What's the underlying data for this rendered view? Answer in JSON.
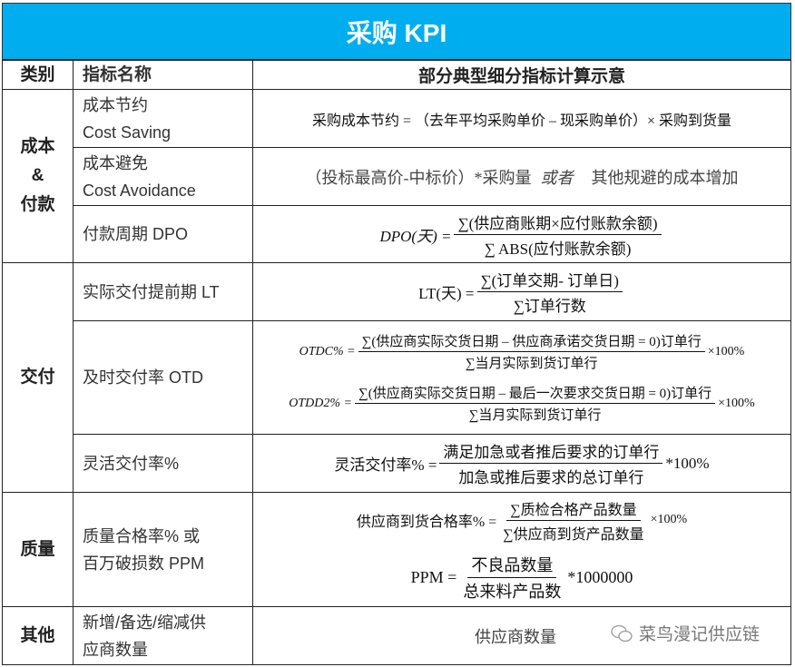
{
  "title": "采购 KPI",
  "headers": {
    "category": "类别",
    "name": "指标名称",
    "calc": "部分典型细分指标计算示意"
  },
  "categories": {
    "cost": "成本\n&\n付款",
    "delivery": "交付",
    "quality": "质量",
    "other": "其他"
  },
  "rows": [
    {
      "name_cn": "成本节约",
      "name_en": "Cost Saving",
      "formula": "采购成本节约 = （去年平均采购单价 – 现采购单价）× 采购到货量"
    },
    {
      "name_cn": "成本避免",
      "name_en": "Cost Avoidance",
      "formula_a": "（投标最高价-中标价）*采购量",
      "formula_or": "或者",
      "formula_b": "其他规避的成本增加"
    },
    {
      "name": "付款周期  DPO",
      "lhs": "DPO(天) =",
      "num": "∑(供应商账期×应付账款余额)",
      "den": "∑ ABS(应付账款余额)"
    },
    {
      "name": "实际交付提前期  LT",
      "lhs": "LT(天) =",
      "num": "∑(订单交期- 订单日)",
      "den": "∑订单行数"
    },
    {
      "name": "及时交付率 OTD",
      "lhs1": "OTDC% =",
      "num1": "∑(供应商实际交货日期 – 供应商承诺交货日期 = 0)订单行",
      "den1": "∑当月实际到货订单行",
      "suf1": "×100%",
      "lhs2": "OTDD2% =",
      "num2": "∑(供应商实际交货日期 – 最后一次要求交货日期 = 0)订单行",
      "den2": "∑当月实际到货订单行",
      "suf2": "×100%"
    },
    {
      "name": "灵活交付率%",
      "lhs": "灵活交付率% =",
      "num": "满足加急或者推后要求的订单行",
      "den": "加急或推后要求的总订单行",
      "suf": "*100%"
    },
    {
      "name": "质量合格率% 或\n百万破损数 PPM",
      "lhs1": "供应商到货合格率% =",
      "num1": "∑质检合格产品数量",
      "den1": "∑供应商到货产品数量",
      "suf1": "×100%",
      "lhs2": "PPM =",
      "num2": "不良品数量",
      "den2": "总来料产品数",
      "suf2": "*1000000"
    },
    {
      "name": "新增/备选/缩减供\n应商数量",
      "formula": "供应商数量"
    }
  ],
  "watermark": "菜鸟漫记供应链",
  "colors": {
    "title_bg": "#00aeef"
  }
}
